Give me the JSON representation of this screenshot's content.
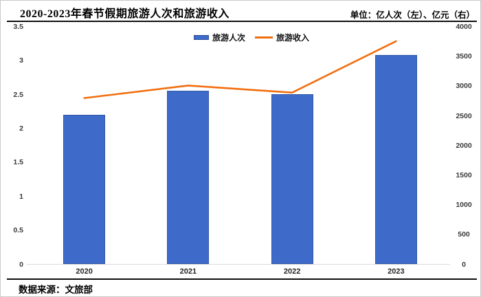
{
  "header": {
    "title": "2020-2023年春节假期旅游人次和旅游收入",
    "unit_label": "单位：亿人次（左）、亿元（右）"
  },
  "footer": {
    "source": "数据来源：文旅部"
  },
  "legend": [
    {
      "label": "旅游人次",
      "type": "bar",
      "color": "#3E6AC9"
    },
    {
      "label": "旅游收入",
      "type": "line",
      "color": "#F26D0D"
    }
  ],
  "colors": {
    "bar_fill": "#3E6AC9",
    "bar_border": "#3157a8",
    "line": "#F26D0D",
    "axis_line": "#dadada"
  },
  "chart_data": {
    "type": "bar",
    "subtype": "combo bar + line, dual axis",
    "title": "2020-2023年春节假期旅游人次和旅游收入",
    "categories": [
      "2020",
      "2021",
      "2022",
      "2023"
    ],
    "series": [
      {
        "name": "旅游人次",
        "type": "bar",
        "axis": "left",
        "unit": "亿人次",
        "values": [
          2.2,
          2.56,
          2.51,
          3.08
        ],
        "color": "#3E6AC9"
      },
      {
        "name": "旅游收入",
        "type": "line",
        "axis": "right",
        "unit": "亿元",
        "values": [
          2800,
          3011,
          2892,
          3758
        ],
        "color": "#F26D0D"
      }
    ],
    "left_axis": {
      "label": "亿人次（左）",
      "min": 0,
      "max": 3.5,
      "ticks": [
        3.5,
        3,
        2.5,
        2,
        1.5,
        1,
        0.5,
        0
      ]
    },
    "right_axis": {
      "label": "亿元（右）",
      "min": 0,
      "max": 4000,
      "ticks": [
        4000,
        3500,
        3000,
        2500,
        2000,
        1500,
        1000,
        500,
        0
      ]
    },
    "grid": false,
    "legend_position": "top-center",
    "source": "数据来源：文旅部"
  }
}
